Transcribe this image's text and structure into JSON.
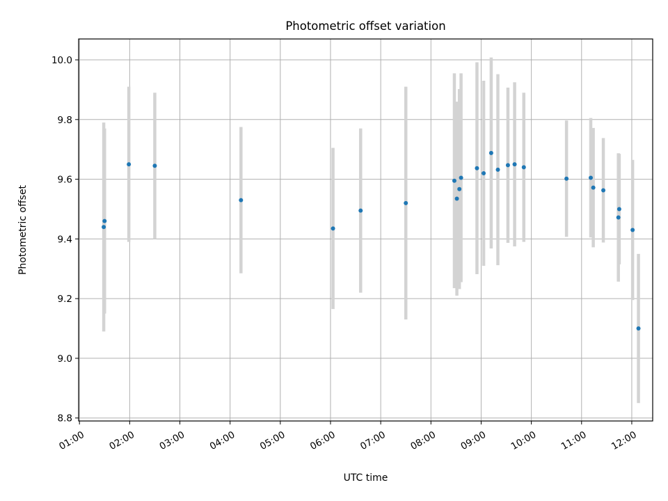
{
  "chart_data": {
    "type": "scatter",
    "title": "Photometric offset variation",
    "xlabel": "UTC time",
    "ylabel": "Photometric offset",
    "grid": true,
    "xlim": [
      "00:59",
      "12:25"
    ],
    "ylim": [
      8.79,
      10.07
    ],
    "x_ticks": [
      "01:00",
      "02:00",
      "03:00",
      "04:00",
      "05:00",
      "06:00",
      "07:00",
      "08:00",
      "09:00",
      "10:00",
      "11:00",
      "12:00"
    ],
    "y_ticks": [
      "8.8",
      "9.0",
      "9.2",
      "9.4",
      "9.6",
      "9.8",
      "10.0"
    ],
    "marker_color": "#1f77b4",
    "errorbar_color": "#d3d3d3",
    "points": [
      {
        "x": "01:29",
        "y": 9.44,
        "yerr": 0.35
      },
      {
        "x": "01:30",
        "y": 9.46,
        "yerr": 0.31
      },
      {
        "x": "01:59",
        "y": 9.65,
        "yerr": 0.26
      },
      {
        "x": "02:30",
        "y": 9.645,
        "yerr": 0.245
      },
      {
        "x": "04:13",
        "y": 9.53,
        "yerr": 0.245
      },
      {
        "x": "06:03",
        "y": 9.435,
        "yerr": 0.27
      },
      {
        "x": "06:36",
        "y": 9.495,
        "yerr": 0.275
      },
      {
        "x": "07:30",
        "y": 9.52,
        "yerr": 0.39
      },
      {
        "x": "08:28",
        "y": 9.595,
        "yerr": 0.36
      },
      {
        "x": "08:31",
        "y": 9.535,
        "yerr": 0.325
      },
      {
        "x": "08:34",
        "y": 9.567,
        "yerr": 0.335
      },
      {
        "x": "08:36",
        "y": 9.605,
        "yerr": 0.35
      },
      {
        "x": "08:55",
        "y": 9.637,
        "yerr": 0.355
      },
      {
        "x": "09:03",
        "y": 9.62,
        "yerr": 0.31
      },
      {
        "x": "09:12",
        "y": 9.688,
        "yerr": 0.32
      },
      {
        "x": "09:20",
        "y": 9.632,
        "yerr": 0.32
      },
      {
        "x": "09:32",
        "y": 9.647,
        "yerr": 0.26
      },
      {
        "x": "09:40",
        "y": 9.65,
        "yerr": 0.275
      },
      {
        "x": "09:51",
        "y": 9.64,
        "yerr": 0.25
      },
      {
        "x": "10:42",
        "y": 9.602,
        "yerr": 0.195
      },
      {
        "x": "11:11",
        "y": 9.605,
        "yerr": 0.2
      },
      {
        "x": "11:14",
        "y": 9.572,
        "yerr": 0.2
      },
      {
        "x": "11:26",
        "y": 9.563,
        "yerr": 0.175
      },
      {
        "x": "11:44",
        "y": 9.472,
        "yerr": 0.215
      },
      {
        "x": "11:45",
        "y": 9.5,
        "yerr": 0.185
      },
      {
        "x": "12:01",
        "y": 9.43,
        "yerr": 0.235
      },
      {
        "x": "12:08",
        "y": 9.1,
        "yerr": 0.25
      }
    ]
  }
}
